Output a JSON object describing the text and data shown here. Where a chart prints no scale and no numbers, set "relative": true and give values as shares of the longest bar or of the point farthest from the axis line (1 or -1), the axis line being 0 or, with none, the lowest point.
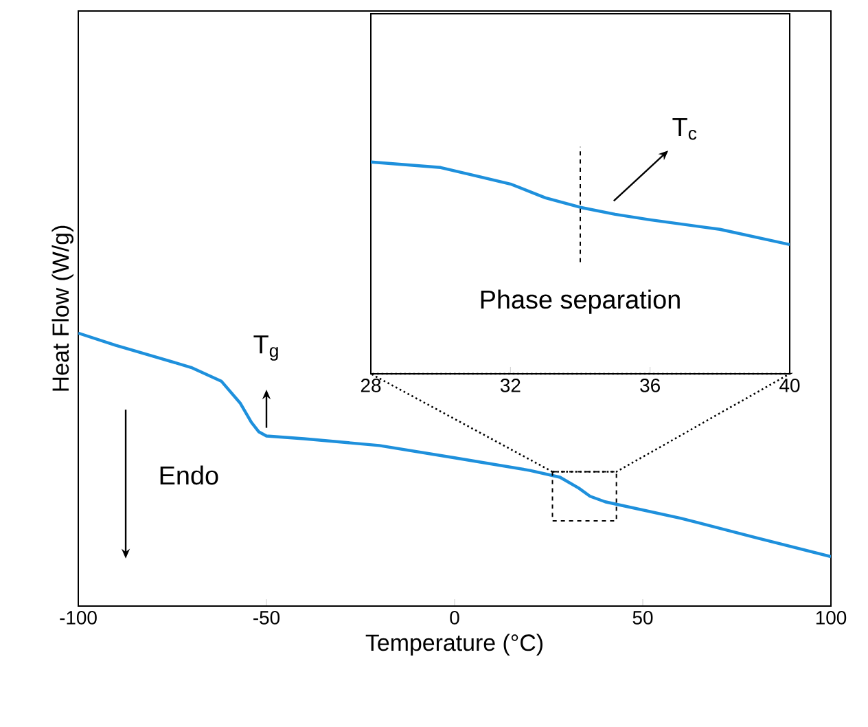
{
  "chart_data": [
    {
      "type": "line",
      "xlabel": "Temperature (°C)",
      "ylabel": "Heat Flow (W/g)",
      "relative": true,
      "xlim": [
        -100,
        100
      ],
      "xticks": [
        -100,
        -50,
        0,
        50,
        100
      ],
      "x": [
        -100,
        -90,
        -80,
        -70,
        -62,
        -57,
        -54,
        -52,
        -50,
        -40,
        -20,
        0,
        20,
        28,
        33,
        36,
        40,
        60,
        80,
        100
      ],
      "series": [
        {
          "color": "#1e90dc",
          "values": [
            1,
            0.955,
            0.915,
            0.874,
            0.824,
            0.744,
            0.673,
            0.638,
            0.623,
            0.613,
            0.588,
            0.543,
            0.497,
            0.472,
            0.432,
            0.402,
            0.382,
            0.322,
            0.251,
            0.181
          ]
        }
      ],
      "annotations": [
        {
          "text": "T$_{g}$",
          "x": -50,
          "y": 0.623
        },
        "Endo"
      ]
    },
    {
      "type": "line",
      "relative": true,
      "xlim": [
        28,
        40
      ],
      "xticks": [
        28,
        32,
        36,
        40
      ],
      "x": [
        28,
        30,
        32,
        33,
        34,
        35,
        36,
        38,
        40
      ],
      "series": [
        {
          "color": "#1e90dc",
          "values": [
            1,
            0.974,
            0.896,
            0.831,
            0.786,
            0.753,
            0.727,
            0.682,
            0.61
          ]
        }
      ],
      "ref_lines": [
        {
          "axis": "x",
          "value": 34,
          "label": "T$_{c}$",
          "line_style": "dashed"
        }
      ],
      "annotations": [
        "Phase separation"
      ]
    }
  ]
}
